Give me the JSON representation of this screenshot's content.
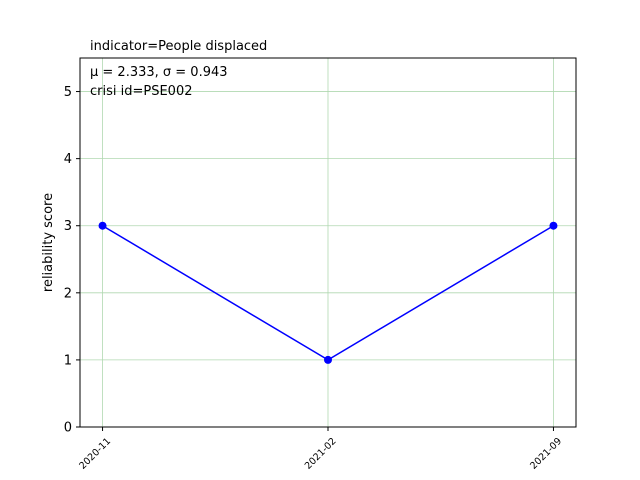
{
  "chart_data": {
    "type": "line",
    "title": "indicator=People displaced",
    "annotation_stats": "μ = 2.333,  σ = 0.943",
    "annotation_id": "crisi id=PSE002",
    "xlabel": "",
    "ylabel": "reliability score",
    "categories": [
      "2020-11",
      "2021-02",
      "2021-09"
    ],
    "series": [
      {
        "values": [
          3,
          1,
          3
        ]
      }
    ],
    "ylim": [
      0,
      5.5
    ],
    "yticks": [
      0,
      1,
      2,
      3,
      4,
      5
    ],
    "grid": true,
    "line_color": "#0000ff",
    "grid_color": "#b0d8b0"
  }
}
